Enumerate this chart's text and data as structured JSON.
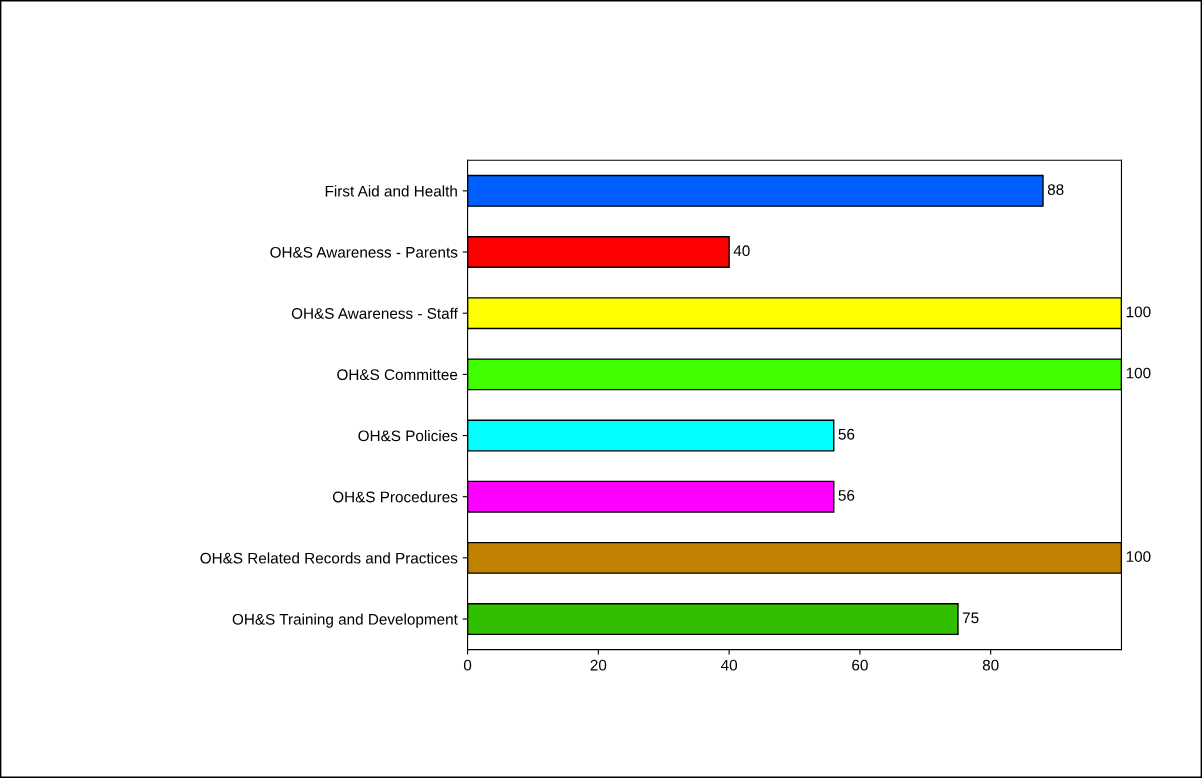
{
  "chart_data": {
    "type": "bar",
    "orientation": "horizontal",
    "categories": [
      "First Aid and Health",
      "OH&S Awareness - Parents",
      "OH&S Awareness - Staff",
      "OH&S Committee",
      "OH&S Policies",
      "OH&S Procedures",
      "OH&S Related Records and Practices",
      "OH&S Training and Development"
    ],
    "values": [
      88,
      40,
      100,
      100,
      56,
      56,
      100,
      75
    ],
    "colors": [
      "#0060ff",
      "#ff0000",
      "#ffff00",
      "#40ff00",
      "#00ffff",
      "#ff00ff",
      "#c08000",
      "#30c000"
    ],
    "xlim": [
      0,
      100
    ],
    "xticks": [
      0,
      20,
      40,
      60,
      80
    ],
    "data_labels": true,
    "grid": false,
    "legend": false
  }
}
